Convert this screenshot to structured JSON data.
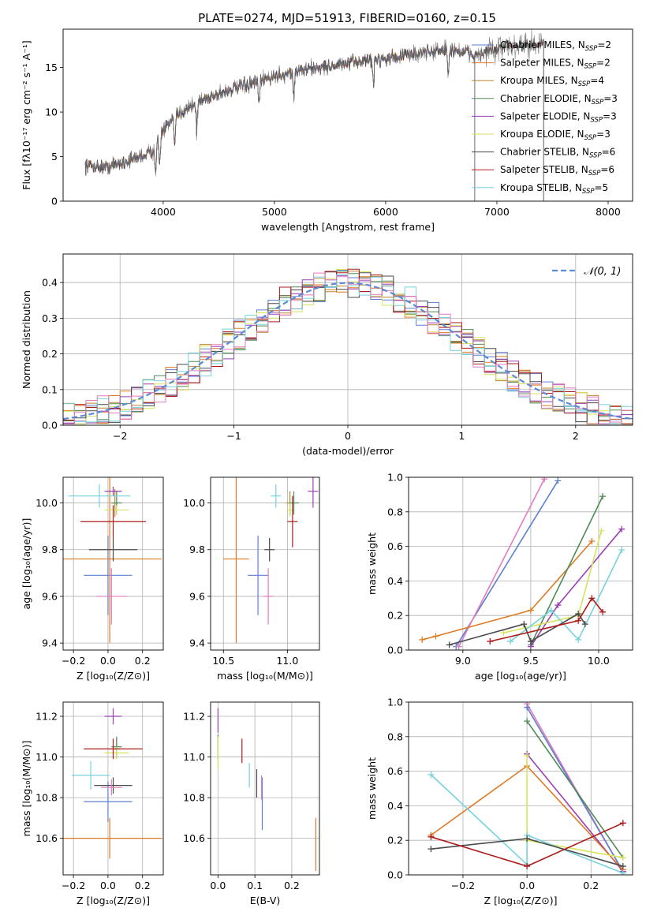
{
  "colors": {
    "series": [
      "#5b7fd1",
      "#dd7a22",
      "#b8862f",
      "#4e8a55",
      "#9b3fb4",
      "#d7e35a",
      "#4a4a4a",
      "#ad1b1b",
      "#76d2dc",
      "#e27bbf"
    ]
  },
  "figure": {
    "title": "PLATE=0274, MJD=51913, FIBERID=0160, z=0.15"
  },
  "chart_data": [
    {
      "id": "spectrum",
      "type": "line",
      "xlabel": "wavelength [Angstrom, rest frame]",
      "ylabel": "Flux [fλ10⁻¹⁷ erg cm⁻² s⁻¹ A⁻¹]",
      "xlim": [
        3100,
        8220
      ],
      "ylim": [
        0,
        19.3
      ],
      "xticks": [
        4000,
        5000,
        6000,
        7000,
        8000
      ],
      "yticks": [
        0,
        5,
        10,
        15
      ],
      "grid": false,
      "legend_position": "top-right",
      "legend": [
        {
          "label": "Chabrier MILES, N_SSP=2",
          "color": "#5b7fd1"
        },
        {
          "label": "Salpeter MILES, N_SSP=2",
          "color": "#dd7a22"
        },
        {
          "label": "Kroupa MILES, N_SSP=4",
          "color": "#b8862f"
        },
        {
          "label": "Chabrier ELODIE, N_SSP=3",
          "color": "#4e8a55"
        },
        {
          "label": "Salpeter ELODIE, N_SSP=3",
          "color": "#9b3fb4"
        },
        {
          "label": "Kroupa ELODIE, N_SSP=3",
          "color": "#d7e35a"
        },
        {
          "label": "Chabrier STELIB, N_SSP=6",
          "color": "#4a4a4a"
        },
        {
          "label": "Salpeter STELIB, N_SSP=6",
          "color": "#ad1b1b"
        },
        {
          "label": "Kroupa STELIB, N_SSP=5",
          "color": "#76d2dc"
        }
      ],
      "continuum": {
        "x": [
          3300,
          3500,
          3700,
          3900,
          4000,
          4200,
          4400,
          4600,
          4800,
          5000,
          5200,
          5400,
          5600,
          5800,
          6000,
          6200,
          6400,
          6600,
          6800,
          7000,
          7200,
          7420
        ],
        "y": [
          4.0,
          3.8,
          4.6,
          5.5,
          8.0,
          10.4,
          11.6,
          12.5,
          13.2,
          14.0,
          14.6,
          15.0,
          15.3,
          15.8,
          16.0,
          16.4,
          16.8,
          17.0,
          16.4,
          17.0,
          17.6,
          17.4
        ]
      },
      "absorption_features": [
        3933,
        3968,
        4102,
        4300,
        4861,
        5175,
        5890,
        6563
      ],
      "model_cutoffs": {
        "miles": 6800,
        "stelib": 7420,
        "elodie": 6800
      }
    },
    {
      "id": "residuals",
      "type": "histogram",
      "xlabel": "(data-model)/error",
      "ylabel": "Normed distribution",
      "xlim": [
        -2.5,
        2.5
      ],
      "ylim": [
        0,
        0.48
      ],
      "xticks": [
        -2,
        -1,
        0,
        1,
        2
      ],
      "yticks": [
        0.0,
        0.1,
        0.2,
        0.3,
        0.4
      ],
      "grid": true,
      "legend_position": "top-right",
      "reference": {
        "label": "𝒩(0, 1)",
        "mean": 0,
        "sigma": 1,
        "color": "#5a8ad8"
      },
      "bin_width": 0.1
    },
    {
      "id": "age-vs-Z",
      "type": "errorbar",
      "xlabel": "Z [log₁₀(Z/Z⊙)]",
      "ylabel": "age  [log₁₀(age/yr)]",
      "xlim": [
        -0.26,
        0.32
      ],
      "ylim": [
        9.37,
        10.11
      ],
      "xticks": [
        -0.2,
        0.0,
        0.2
      ],
      "yticks": [
        9.4,
        9.6,
        9.8,
        10.0
      ],
      "grid": true,
      "points": [
        {
          "x": 0.0,
          "y": 9.69,
          "xerr": 0.14,
          "yerr": 0.17,
          "c": 0
        },
        {
          "x": 0.01,
          "y": 9.76,
          "xerr": 0.3,
          "yerr": 0.36,
          "c": 1
        },
        {
          "x": 0.04,
          "y": 10.0,
          "xerr": 0.02,
          "yerr": 0.06,
          "c": 2
        },
        {
          "x": 0.05,
          "y": 10.0,
          "xerr": 0.03,
          "yerr": 0.05,
          "c": 3
        },
        {
          "x": 0.03,
          "y": 10.05,
          "xerr": 0.05,
          "yerr": 0.02,
          "c": 4
        },
        {
          "x": 0.05,
          "y": 9.97,
          "xerr": 0.07,
          "yerr": 0.02,
          "c": 5
        },
        {
          "x": 0.03,
          "y": 9.8,
          "xerr": 0.14,
          "yerr": 0.05,
          "c": 6
        },
        {
          "x": 0.03,
          "y": 9.92,
          "xerr": 0.19,
          "yerr": 0.07,
          "c": 7
        },
        {
          "x": -0.05,
          "y": 10.03,
          "xerr": 0.18,
          "yerr": 0.05,
          "c": 8
        },
        {
          "x": 0.02,
          "y": 9.6,
          "xerr": 0.09,
          "yerr": 0.12,
          "c": 9
        }
      ]
    },
    {
      "id": "age-vs-mass",
      "type": "errorbar",
      "xlabel": "mass [log₁₀(M/M⊙)]",
      "ylabel": "",
      "xlim": [
        10.4,
        11.25
      ],
      "ylim": [
        9.37,
        10.11
      ],
      "xticks": [
        10.5,
        11.0
      ],
      "yticks": [
        9.4,
        9.6,
        9.8,
        10.0
      ],
      "grid": true,
      "points": [
        {
          "x": 10.77,
          "y": 9.69,
          "xerr": 0.08,
          "yerr": 0.17,
          "c": 0
        },
        {
          "x": 10.6,
          "y": 9.76,
          "xerr": 0.1,
          "yerr": 0.36,
          "c": 1
        },
        {
          "x": 11.02,
          "y": 10.0,
          "xerr": 0.03,
          "yerr": 0.05,
          "c": 2
        },
        {
          "x": 11.05,
          "y": 10.0,
          "xerr": 0.04,
          "yerr": 0.05,
          "c": 3
        },
        {
          "x": 11.2,
          "y": 10.05,
          "xerr": 0.04,
          "yerr": 0.07,
          "c": 4
        },
        {
          "x": 11.02,
          "y": 9.97,
          "xerr": 0.02,
          "yerr": 0.03,
          "c": 5
        },
        {
          "x": 10.86,
          "y": 9.8,
          "xerr": 0.04,
          "yerr": 0.05,
          "c": 6
        },
        {
          "x": 11.04,
          "y": 9.92,
          "xerr": 0.04,
          "yerr": 0.11,
          "c": 7
        },
        {
          "x": 10.91,
          "y": 10.03,
          "xerr": 0.04,
          "yerr": 0.05,
          "c": 8
        },
        {
          "x": 10.85,
          "y": 9.6,
          "xerr": 0.04,
          "yerr": 0.12,
          "c": 9
        }
      ]
    },
    {
      "id": "mass-weight-vs-age",
      "type": "line",
      "xlabel": "age  [log₁₀(age/yr)]",
      "ylabel": "mass weight",
      "xlim": [
        8.6,
        10.25
      ],
      "ylim": [
        0,
        1.0
      ],
      "xticks": [
        9.0,
        9.5,
        10.0
      ],
      "yticks": [
        0.0,
        0.2,
        0.4,
        0.6,
        0.8,
        1.0
      ],
      "grid": true,
      "series": [
        {
          "c": 0,
          "x": [
            8.95,
            9.7
          ],
          "y": [
            0.02,
            0.98
          ]
        },
        {
          "c": 9,
          "x": [
            8.97,
            9.6
          ],
          "y": [
            0.02,
            0.99
          ]
        },
        {
          "c": 1,
          "x": [
            8.7,
            8.8,
            9.5,
            9.95
          ],
          "y": [
            0.06,
            0.08,
            0.23,
            0.63
          ]
        },
        {
          "c": 3,
          "x": [
            9.5,
            10.03
          ],
          "y": [
            0.03,
            0.89
          ]
        },
        {
          "c": 4,
          "x": [
            9.5,
            9.7,
            10.17
          ],
          "y": [
            0.02,
            0.26,
            0.7
          ]
        },
        {
          "c": 5,
          "x": [
            9.3,
            9.85,
            10.02
          ],
          "y": [
            0.1,
            0.2,
            0.69
          ]
        },
        {
          "c": 8,
          "x": [
            9.35,
            9.65,
            9.85,
            10.17
          ],
          "y": [
            0.05,
            0.23,
            0.06,
            0.58
          ]
        },
        {
          "c": 6,
          "x": [
            8.9,
            9.45,
            9.5,
            9.85,
            9.9
          ],
          "y": [
            0.03,
            0.15,
            0.05,
            0.21,
            0.15
          ]
        },
        {
          "c": 7,
          "x": [
            9.2,
            9.85,
            9.95,
            10.03
          ],
          "y": [
            0.05,
            0.17,
            0.3,
            0.22
          ]
        }
      ]
    },
    {
      "id": "mass-vs-Z",
      "type": "errorbar",
      "xlabel": "Z [log₁₀(Z/Z⊙)]",
      "ylabel": "mass [log₁₀(M/M⊙)]",
      "xlim": [
        -0.26,
        0.32
      ],
      "ylim": [
        10.42,
        11.27
      ],
      "xticks": [
        -0.2,
        0.0,
        0.2
      ],
      "yticks": [
        10.6,
        10.8,
        11.0,
        11.2
      ],
      "grid": true,
      "points": [
        {
          "x": 0.0,
          "y": 10.78,
          "xerr": 0.14,
          "yerr": 0.1,
          "c": 0
        },
        {
          "x": 0.01,
          "y": 10.6,
          "xerr": 0.3,
          "yerr": 0.1,
          "c": 1
        },
        {
          "x": 0.05,
          "y": 11.04,
          "xerr": 0.02,
          "yerr": 0.05,
          "c": 2
        },
        {
          "x": 0.05,
          "y": 11.05,
          "xerr": 0.03,
          "yerr": 0.05,
          "c": 3
        },
        {
          "x": 0.03,
          "y": 11.2,
          "xerr": 0.05,
          "yerr": 0.04,
          "c": 4
        },
        {
          "x": 0.05,
          "y": 11.02,
          "xerr": 0.07,
          "yerr": 0.03,
          "c": 5
        },
        {
          "x": 0.03,
          "y": 10.86,
          "xerr": 0.11,
          "yerr": 0.04,
          "c": 6
        },
        {
          "x": 0.03,
          "y": 11.04,
          "xerr": 0.17,
          "yerr": 0.05,
          "c": 7
        },
        {
          "x": -0.1,
          "y": 10.91,
          "xerr": 0.11,
          "yerr": 0.07,
          "c": 8
        },
        {
          "x": 0.02,
          "y": 10.85,
          "xerr": 0.06,
          "yerr": 0.04,
          "c": 9
        }
      ]
    },
    {
      "id": "mass-vs-ebv",
      "type": "errorbar",
      "xlabel": "E(B-V)",
      "ylabel": "",
      "xlim": [
        -0.02,
        0.275
      ],
      "ylim": [
        10.42,
        11.27
      ],
      "xticks": [
        0.0,
        0.1,
        0.2
      ],
      "yticks": [
        10.6,
        10.8,
        11.0,
        11.2
      ],
      "grid": true,
      "points": [
        {
          "x": 0.12,
          "y": 10.77,
          "xerr": 0.0,
          "yerr": 0.13,
          "c": 0
        },
        {
          "x": 0.265,
          "y": 10.57,
          "xerr": 0.0,
          "yerr": 0.13,
          "c": 1
        },
        {
          "x": 0.0,
          "y": 11.05,
          "xerr": 0.0,
          "yerr": 0.06,
          "c": 3
        },
        {
          "x": 0.0,
          "y": 11.18,
          "xerr": 0.0,
          "yerr": 0.06,
          "c": 4
        },
        {
          "x": 0.0,
          "y": 11.02,
          "xerr": 0.0,
          "yerr": 0.08,
          "c": 5
        },
        {
          "x": 0.105,
          "y": 10.87,
          "xerr": 0.0,
          "yerr": 0.07,
          "c": 6
        },
        {
          "x": 0.065,
          "y": 11.03,
          "xerr": 0.0,
          "yerr": 0.06,
          "c": 7
        },
        {
          "x": 0.085,
          "y": 10.91,
          "xerr": 0.0,
          "yerr": 0.06,
          "c": 8
        },
        {
          "x": 0.118,
          "y": 10.85,
          "xerr": 0.0,
          "yerr": 0.06,
          "c": 9
        }
      ]
    },
    {
      "id": "mass-weight-vs-Z",
      "type": "line",
      "xlabel": "Z [log₁₀(Z/Z⊙)]",
      "ylabel": "mass weight",
      "xlim": [
        -0.37,
        0.33
      ],
      "ylim": [
        0,
        1.0
      ],
      "xticks": [
        -0.2,
        0.0,
        0.2
      ],
      "yticks": [
        0.0,
        0.2,
        0.4,
        0.6,
        0.8,
        1.0
      ],
      "grid": true,
      "series": [
        {
          "c": 9,
          "x": [
            0.0,
            0.3
          ],
          "y": [
            0.99,
            0.02
          ]
        },
        {
          "c": 0,
          "x": [
            0.0,
            0.3
          ],
          "y": [
            0.97,
            0.02
          ]
        },
        {
          "c": 3,
          "x": [
            0.0,
            0.3
          ],
          "y": [
            0.89,
            0.1
          ]
        },
        {
          "c": 4,
          "x": [
            0.0,
            0.3
          ],
          "y": [
            0.7,
            0.02
          ]
        },
        {
          "c": 1,
          "x": [
            -0.3,
            0.0,
            0.3
          ],
          "y": [
            0.23,
            0.63,
            0.03
          ]
        },
        {
          "c": 5,
          "x": [
            0.0,
            0.0,
            0.3
          ],
          "y": [
            0.69,
            0.2,
            0.1
          ]
        },
        {
          "c": 8,
          "x": [
            -0.3,
            0.0,
            0.0,
            0.3
          ],
          "y": [
            0.58,
            0.06,
            0.23,
            0.01
          ]
        },
        {
          "c": 6,
          "x": [
            -0.3,
            0.0,
            0.3
          ],
          "y": [
            0.15,
            0.21,
            0.05
          ]
        },
        {
          "c": 7,
          "x": [
            -0.3,
            0.0,
            0.3
          ],
          "y": [
            0.22,
            0.05,
            0.3
          ]
        }
      ]
    }
  ]
}
